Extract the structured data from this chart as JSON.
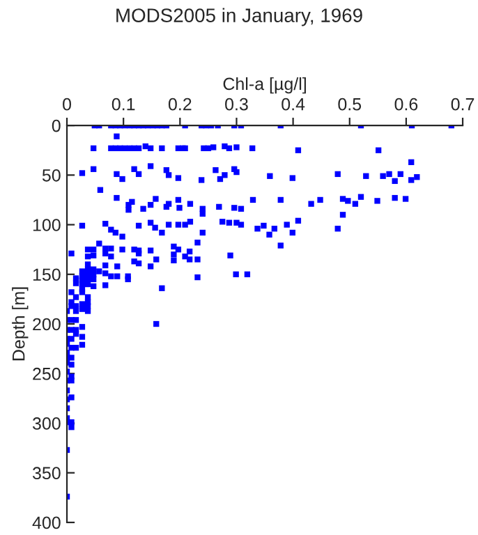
{
  "chart_data": {
    "type": "scatter",
    "title": "MODS2005 in January, 1969",
    "xlabel": "Chl-a [µg/l]",
    "ylabel": "Depth [m]",
    "xlim": [
      0,
      0.7
    ],
    "xticks": [
      0,
      0.1,
      0.2,
      0.3,
      0.4,
      0.5,
      0.6,
      0.7
    ],
    "ylim": [
      400,
      0
    ],
    "yticks": [
      0,
      50,
      100,
      150,
      200,
      250,
      300,
      350,
      400
    ],
    "grid": false,
    "marker": "square",
    "series": [
      {
        "color": "#0000ff",
        "x": [
          0.049,
          0.057,
          0.078,
          0.086,
          0.094,
          0.102,
          0.111,
          0.119,
          0.127,
          0.135,
          0.143,
          0.152,
          0.16,
          0.168,
          0.176,
          0.209,
          0.238,
          0.246,
          0.255,
          0.267,
          0.296,
          0.308,
          0.378,
          0.52,
          0.61,
          0.68,
          0.088,
          0.047,
          0.078,
          0.086,
          0.094,
          0.102,
          0.111,
          0.119,
          0.127,
          0.148,
          0.168,
          0.197,
          0.205,
          0.209,
          0.25,
          0.287,
          0.328,
          0.409,
          0.551,
          0.242,
          0.139,
          0.279,
          0.259,
          0.3,
          0.027,
          0.047,
          0.088,
          0.098,
          0.119,
          0.127,
          0.148,
          0.176,
          0.18,
          0.197,
          0.238,
          0.263,
          0.271,
          0.279,
          0.296,
          0.3,
          0.359,
          0.399,
          0.479,
          0.529,
          0.559,
          0.57,
          0.58,
          0.59,
          0.609,
          0.609,
          0.619,
          0.059,
          0.088,
          0.109,
          0.109,
          0.115,
          0.135,
          0.148,
          0.157,
          0.176,
          0.18,
          0.197,
          0.199,
          0.218,
          0.24,
          0.24,
          0.269,
          0.296,
          0.308,
          0.329,
          0.378,
          0.432,
          0.448,
          0.488,
          0.497,
          0.51,
          0.52,
          0.549,
          0.58,
          0.599,
          0.488,
          0.027,
          0.068,
          0.078,
          0.086,
          0.098,
          0.127,
          0.148,
          0.156,
          0.168,
          0.18,
          0.197,
          0.209,
          0.218,
          0.24,
          0.275,
          0.287,
          0.3,
          0.308,
          0.337,
          0.348,
          0.358,
          0.367,
          0.389,
          0.399,
          0.409,
          0.378,
          0.479,
          0.008,
          0.037,
          0.037,
          0.047,
          0.047,
          0.057,
          0.068,
          0.068,
          0.078,
          0.078,
          0.098,
          0.119,
          0.119,
          0.127,
          0.127,
          0.127,
          0.148,
          0.148,
          0.158,
          0.189,
          0.189,
          0.189,
          0.197,
          0.209,
          0.217,
          0.217,
          0.231,
          0.231,
          0.289,
          0.016,
          0.016,
          0.027,
          0.027,
          0.027,
          0.027,
          0.027,
          0.027,
          0.037,
          0.037,
          0.037,
          0.037,
          0.037,
          0.047,
          0.047,
          0.047,
          0.047,
          0.057,
          0.068,
          0.068,
          0.068,
          0.078,
          0.089,
          0.089,
          0.108,
          0.108,
          0.168,
          0.231,
          0.299,
          0.319,
          0.0,
          0.0,
          0.0,
          0.0,
          0.0,
          0.0,
          0.0,
          0.0,
          0.0,
          0.0,
          0.0,
          0.0,
          0.0,
          0.0,
          0.0,
          0.008,
          0.008,
          0.008,
          0.008,
          0.008,
          0.008,
          0.008,
          0.008,
          0.008,
          0.008,
          0.008,
          0.008,
          0.008,
          0.008,
          0.016,
          0.016,
          0.016,
          0.016,
          0.016,
          0.016,
          0.016,
          0.027,
          0.027,
          0.027,
          0.027,
          0.027,
          0.037,
          0.037,
          0.037,
          0.037,
          0.158,
          0.0,
          0.0
        ],
        "values": [
          0,
          0,
          0,
          0,
          0,
          0,
          0,
          0,
          0,
          0,
          0,
          0,
          0,
          0,
          0,
          0,
          0,
          0,
          0,
          0,
          0,
          0,
          0,
          0,
          0,
          0,
          11,
          23,
          23,
          23,
          23,
          23,
          23,
          23,
          23,
          23,
          23,
          23,
          23,
          23,
          23,
          23,
          23,
          25,
          25,
          23,
          21,
          21,
          22,
          22,
          48,
          44,
          49,
          54,
          44,
          49,
          41,
          45,
          50,
          53,
          55,
          45,
          54,
          50,
          44,
          47,
          51,
          53,
          49,
          51,
          51,
          49,
          56,
          49,
          37,
          55,
          52,
          65,
          73,
          80,
          85,
          77,
          84,
          80,
          74,
          82,
          79,
          75,
          83,
          79,
          84,
          89,
          82,
          83,
          84,
          75,
          75,
          79,
          75,
          74,
          76,
          79,
          72,
          76,
          73,
          74,
          90,
          101,
          99,
          105,
          108,
          112,
          101,
          98,
          103,
          108,
          100,
          100,
          100,
          97,
          108,
          97,
          98,
          98,
          100,
          104,
          101,
          110,
          104,
          100,
          108,
          96,
          121,
          104,
          129,
          125,
          132,
          125,
          131,
          119,
          124,
          129,
          124,
          132,
          125,
          125,
          137,
          126,
          129,
          139,
          126,
          142,
          135,
          122,
          130,
          136,
          125,
          132,
          127,
          135,
          118,
          135,
          131,
          154,
          159,
          147,
          152,
          156,
          160,
          165,
          168,
          140,
          145,
          150,
          155,
          160,
          145,
          150,
          155,
          162,
          147,
          141,
          149,
          161,
          152,
          142,
          152,
          152,
          155,
          164,
          153,
          150,
          150,
          187,
          196,
          206,
          215,
          220,
          229,
          234,
          239,
          248,
          257,
          267,
          276,
          285,
          295,
          299,
          168,
          178,
          182,
          196,
          206,
          215,
          224,
          234,
          241,
          253,
          257,
          274,
          299,
          304,
          173,
          182,
          187,
          196,
          206,
          210,
          224,
          180,
          185,
          203,
          213,
          221,
          173,
          178,
          182,
          187,
          200,
          327,
          374
        ]
      }
    ]
  }
}
